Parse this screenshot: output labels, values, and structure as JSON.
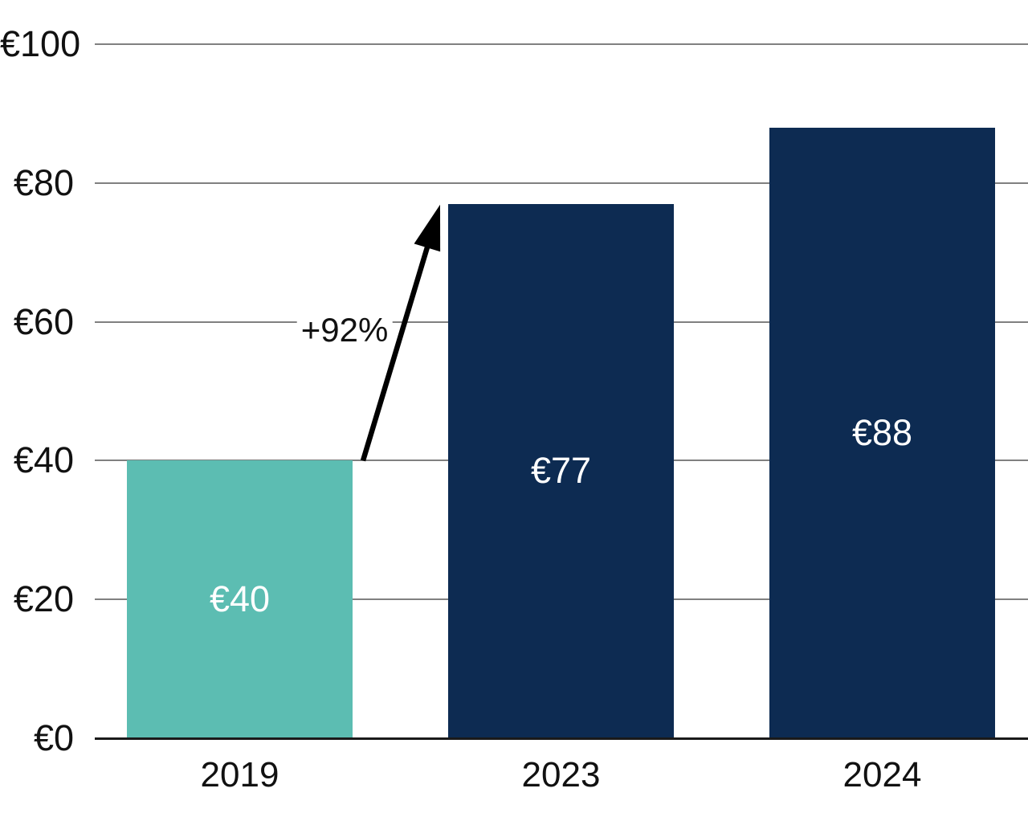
{
  "chart_data": {
    "type": "bar",
    "categories": [
      "2019",
      "2023",
      "2024"
    ],
    "values": [
      40,
      77,
      88
    ],
    "bar_labels": [
      "€40",
      "€77",
      "€88"
    ],
    "bar_colors": [
      "#5CBDB2",
      "#0D2B52",
      "#0D2B52"
    ],
    "ylim": [
      0,
      100
    ],
    "yticks": [
      {
        "value": 0,
        "label": "€0"
      },
      {
        "value": 20,
        "label": "€20"
      },
      {
        "value": 40,
        "label": "€40"
      },
      {
        "value": 60,
        "label": "€60"
      },
      {
        "value": 80,
        "label": "€80"
      },
      {
        "value": 100,
        "label": "€100"
      }
    ],
    "grid": "horizontal",
    "legend_position": "none",
    "annotation": {
      "text": "+92%",
      "from_category": "2019",
      "from_value": 40,
      "to_category": "2023",
      "to_value": 77
    }
  },
  "colors": {
    "teal_bar": "#5CBDB2",
    "navy_bar": "#0D2B52",
    "gridline": "#808080",
    "axis_line": "#1A1A1A",
    "tick_text": "#111111",
    "bar_label_text": "#FFFFFF",
    "annotation_text": "#111111",
    "arrow": "#000000",
    "background": "#FFFFFF"
  }
}
